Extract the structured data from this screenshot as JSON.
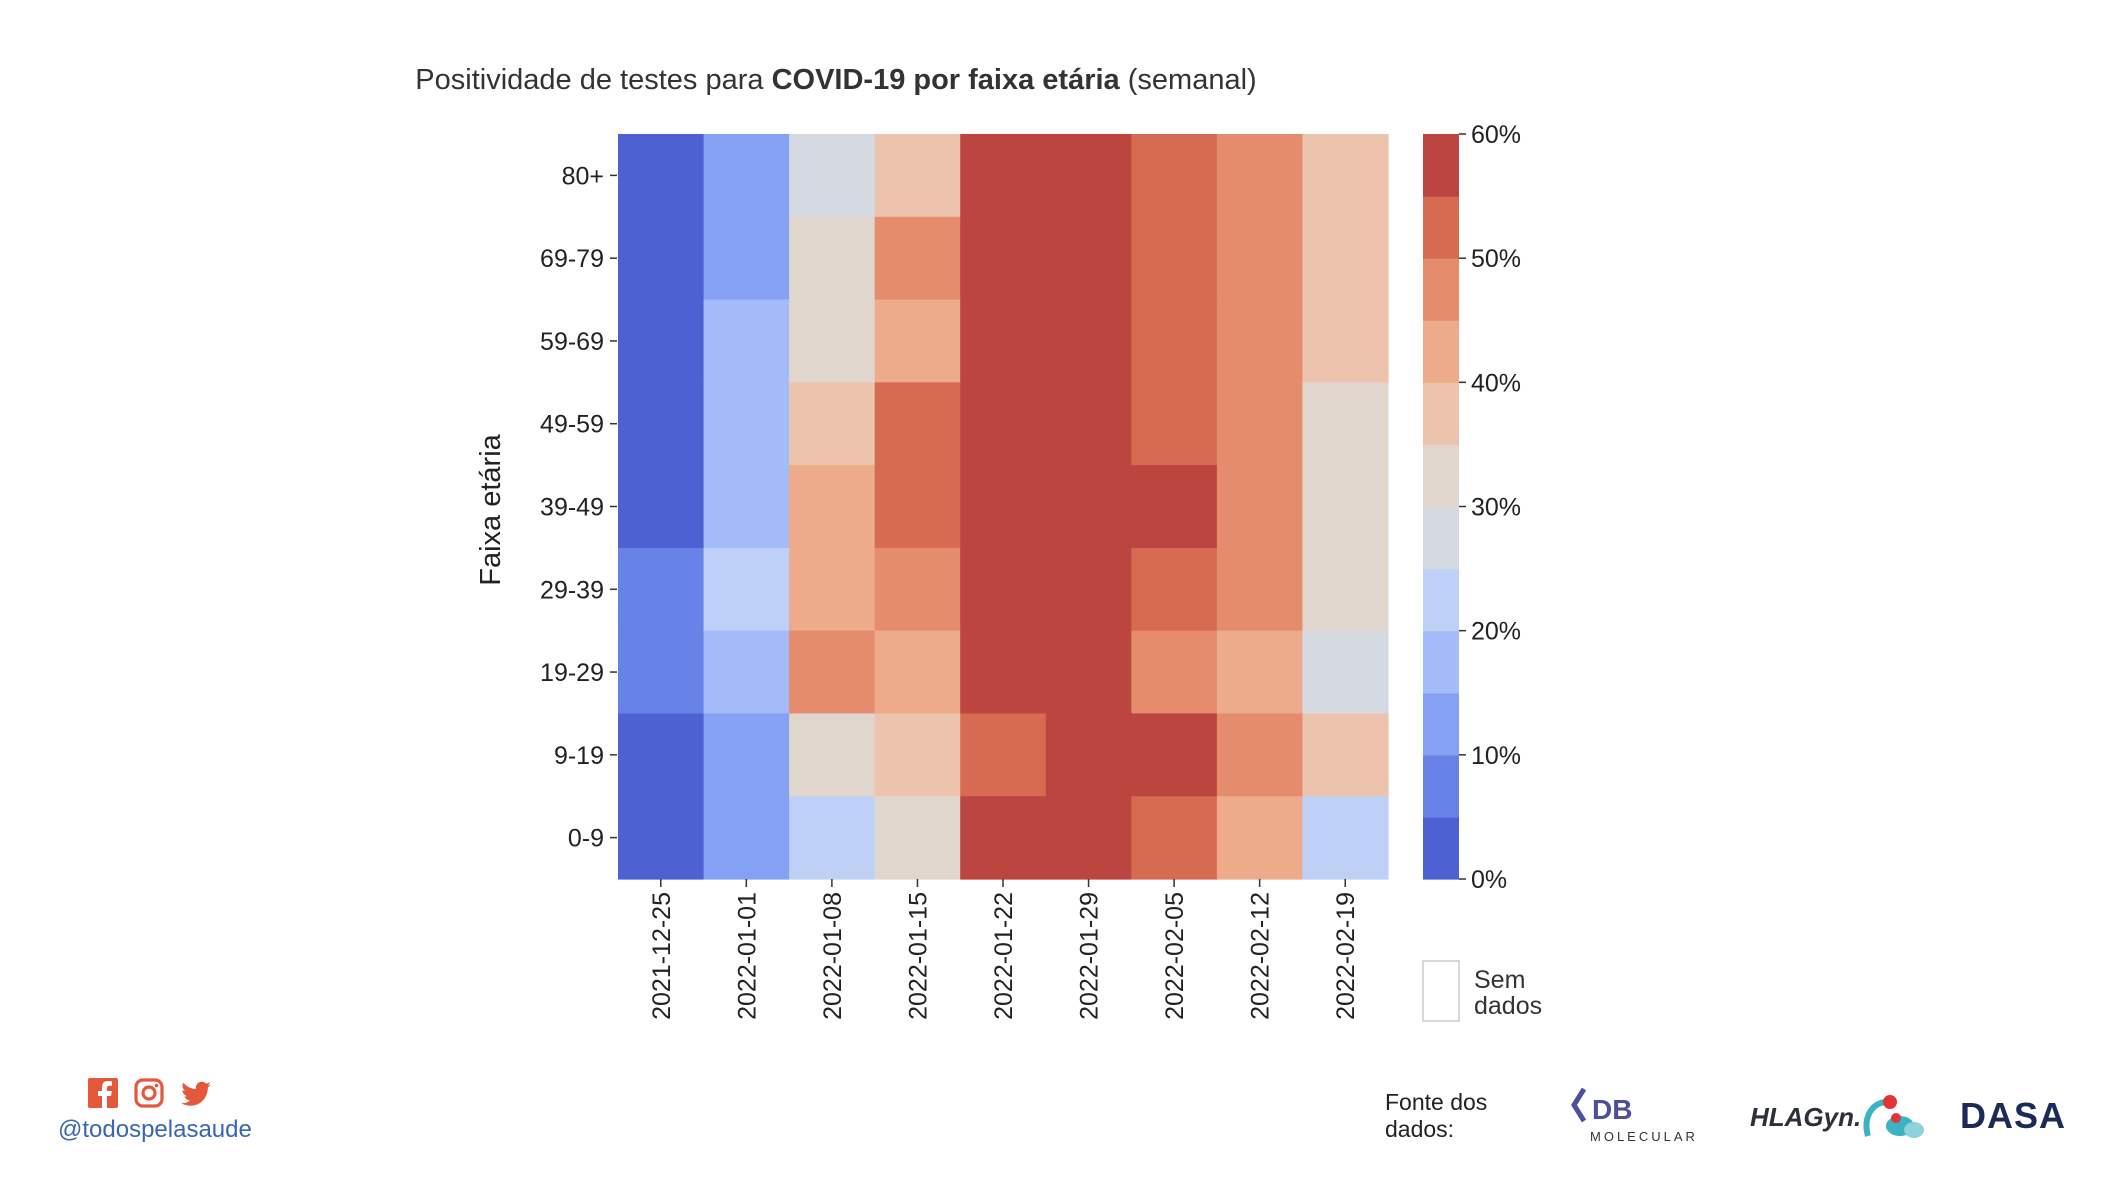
{
  "title_plain_1": "Positividade de testes para ",
  "title_bold": "COVID-19 por faixa etária",
  "title_plain_2": " (semanal)",
  "chart_data": {
    "type": "heatmap",
    "ylabel": "Faixa etária",
    "xlabel": "",
    "x": [
      "2021-12-25",
      "2022-01-01",
      "2022-01-08",
      "2022-01-15",
      "2022-01-22",
      "2022-01-29",
      "2022-02-05",
      "2022-02-12",
      "2022-02-19"
    ],
    "y": [
      "80+",
      "69-79",
      "59-69",
      "49-59",
      "39-49",
      "29-39",
      "19-29",
      "9-19",
      "0-9"
    ],
    "values": [
      [
        2,
        13,
        28,
        38,
        57,
        57,
        50,
        47,
        37
      ],
      [
        2,
        13,
        32,
        47,
        57,
        57,
        50,
        47,
        37
      ],
      [
        2,
        17,
        32,
        42,
        57,
        57,
        50,
        47,
        37
      ],
      [
        2,
        17,
        37,
        52,
        57,
        57,
        50,
        47,
        32
      ],
      [
        2,
        17,
        42,
        52,
        57,
        57,
        57,
        47,
        32
      ],
      [
        8,
        22,
        42,
        47,
        57,
        57,
        50,
        47,
        32
      ],
      [
        8,
        17,
        47,
        42,
        57,
        57,
        47,
        42,
        27
      ],
      [
        2,
        13,
        32,
        37,
        52,
        57,
        57,
        47,
        37
      ],
      [
        2,
        13,
        22,
        32,
        57,
        57,
        50,
        42,
        22
      ]
    ],
    "colorbar": {
      "min": 0,
      "max": 60,
      "step": 5,
      "ticks": [
        "60%",
        "50%",
        "40%",
        "30%",
        "20%",
        "10%",
        "0%"
      ],
      "colors": [
        "#4e61d2",
        "#6883e8",
        "#85a1f3",
        "#a3bbf9",
        "#bfd0f7",
        "#d5d9e2",
        "#e1d6cd",
        "#ecc3ad",
        "#eeab8b",
        "#e58c6c",
        "#d66b52",
        "#bc4540"
      ]
    },
    "no_data_label": "Sem dados",
    "grid": false
  },
  "footer": {
    "handle": "@todospelasaude",
    "social_icons": [
      "facebook-icon",
      "instagram-icon",
      "twitter-icon"
    ],
    "social_color": "#e4583b",
    "source_label": "Fonte dos dados:",
    "logos": [
      {
        "name": "db-molecular-logo",
        "text": "DB",
        "subtext": "MOLECULAR"
      },
      {
        "name": "hlagyn-logo",
        "text": "HLAGyn."
      },
      {
        "name": "dasa-logo",
        "text": "DASA"
      }
    ]
  }
}
